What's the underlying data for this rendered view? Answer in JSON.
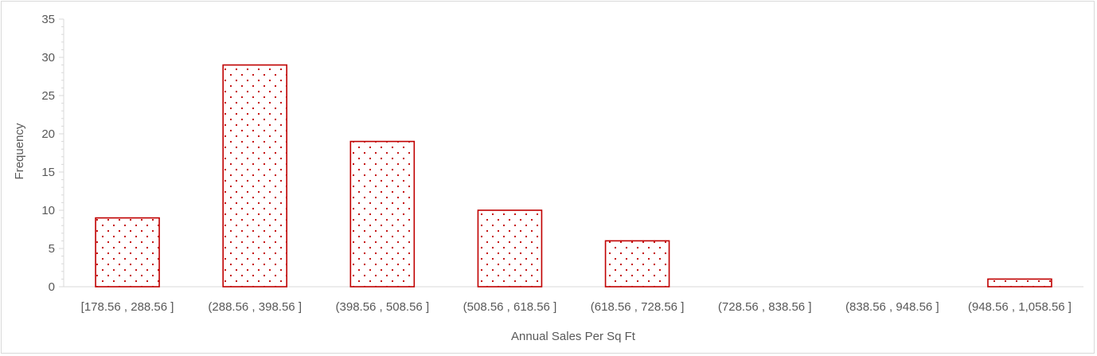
{
  "chart_data": {
    "type": "bar",
    "categories": [
      "[178.56 , 288.56 ]",
      "(288.56 , 398.56 ]",
      "(398.56 , 508.56 ]",
      "(508.56 , 618.56 ]",
      "(618.56 , 728.56 ]",
      "(728.56 , 838.56 ]",
      "(838.56 , 948.56 ]",
      "(948.56 , 1,058.56 ]"
    ],
    "values": [
      9,
      29,
      19,
      10,
      6,
      0,
      0,
      1
    ],
    "xlabel": "Annual Sales Per Sq Ft",
    "ylabel": "Frequency",
    "ylim": [
      0,
      35
    ],
    "yticks": [
      0,
      5,
      10,
      15,
      20,
      25,
      30,
      35
    ],
    "grid": false,
    "legend": "none",
    "colors": {
      "bar_outline": "#c00000",
      "bar_pattern": "#c00000",
      "axis": "#d9d9d9",
      "text": "#595959"
    }
  }
}
